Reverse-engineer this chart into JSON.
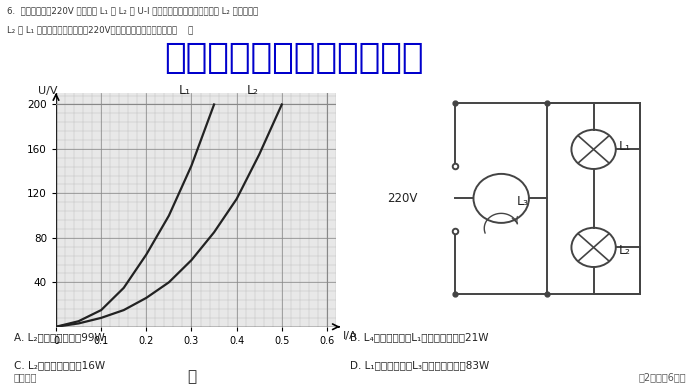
{
  "title_line1": "6.  额定电压均为220V 的白炽灯 L₁ 和 L₂ 的 U-I 特性曲线如图里所示，现将和 L₂ 完全相同的",
  "title_line2": "L₂ 与 L₁ 如图乙所示的电路接入220V电路中，则下列说法正确的（    ）",
  "watermark": "微信公众号关注：趣找答案",
  "graph_label": "甲",
  "ylabel": "U/V",
  "xlabel": "I/A",
  "yticks": [
    40,
    80,
    120,
    160,
    200
  ],
  "xticks": [
    0.1,
    0.2,
    0.3,
    0.4,
    0.5,
    0.6
  ],
  "L1_I": [
    0.0,
    0.05,
    0.1,
    0.15,
    0.2,
    0.25,
    0.3,
    0.35
  ],
  "L1_U": [
    0.0,
    5.0,
    15.0,
    35.0,
    65.0,
    100.0,
    145.0,
    200.0
  ],
  "L2_I": [
    0.0,
    0.05,
    0.1,
    0.15,
    0.2,
    0.25,
    0.3,
    0.35,
    0.4,
    0.45,
    0.5
  ],
  "L2_U": [
    0.0,
    3.0,
    8.0,
    15.0,
    26.0,
    40.0,
    60.0,
    85.0,
    115.0,
    155.0,
    200.0
  ],
  "options": [
    [
      "A. L₂的额定功率约亙99W",
      "B. L₄的实际功率比L₁的实际功率约小21W"
    ],
    [
      "C. L₂的实际功率约亖16W",
      "D. L₁的实际功率比L₃的实际功率约小83W"
    ]
  ],
  "bottom_left": "高二物理",
  "bottom_right": "第2页（共6页）",
  "bg_color": "#e8e8e8",
  "grid_minor_color": "#bbbbbb",
  "grid_major_color": "#888888",
  "line_color": "#222222",
  "watermark_color": "#0000cc",
  "text_color": "#333333"
}
